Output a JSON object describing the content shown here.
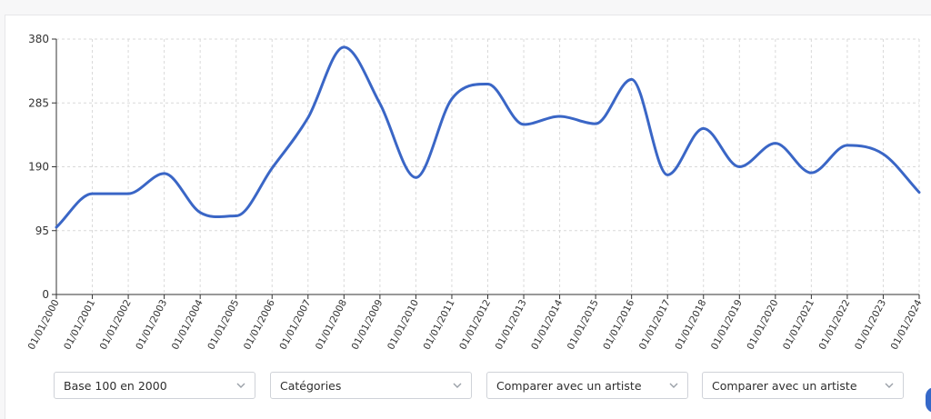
{
  "chart_data": {
    "type": "line",
    "title": "",
    "xlabel": "",
    "ylabel": "",
    "ylim": [
      0,
      380
    ],
    "yticks": [
      "0",
      "95",
      "190",
      "285",
      "380"
    ],
    "x": [
      "01/01/2000",
      "01/01/2001",
      "01/01/2002",
      "01/01/2003",
      "01/01/2004",
      "01/01/2005",
      "01/01/2006",
      "01/01/2007",
      "01/01/2008",
      "01/01/2009",
      "01/01/2010",
      "01/01/2011",
      "01/01/2012",
      "01/01/2013",
      "01/01/2014",
      "01/01/2015",
      "01/01/2016",
      "01/01/2017",
      "01/01/2018",
      "01/01/2019",
      "01/01/2020",
      "01/01/2021",
      "01/01/2022",
      "01/01/2023",
      "01/01/2024"
    ],
    "series": [
      {
        "values": [
          100,
          150,
          150,
          180,
          122,
          117,
          188,
          263,
          368,
          284,
          174,
          291,
          313,
          253,
          265,
          254,
          320,
          178,
          247,
          190,
          225,
          181,
          222,
          209,
          152
        ]
      }
    ],
    "grid": true,
    "line_color": "#3a66c6"
  },
  "controls": {
    "base": "Base 100 en 2000",
    "categories": "Catégories",
    "compare1": "Comparer avec un artiste",
    "compare2": "Comparer avec un artiste"
  },
  "icons": {
    "select_arrow": "chevron-down-icon"
  }
}
